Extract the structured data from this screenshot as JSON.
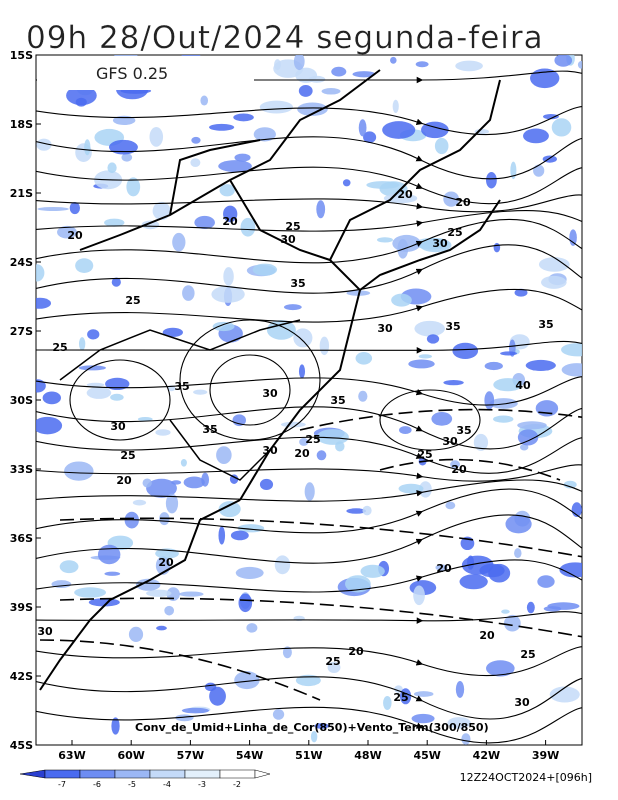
{
  "title": "09h 28/Out/2024 segunda-feira",
  "model": "GFS 0.25",
  "lat_labels": [
    "15S",
    "18S",
    "21S",
    "24S",
    "27S",
    "30S",
    "33S",
    "36S",
    "39S",
    "42S",
    "45S"
  ],
  "lon_labels": [
    "63W",
    "60W",
    "57W",
    "54W",
    "51W",
    "48W",
    "45W",
    "42W",
    "39W"
  ],
  "caption": "Conv_de_Umid+Linha_de_Cor(850)+Vento_Term(300/850)",
  "colorbar": {
    "labels": [
      "-7",
      "-6",
      "-5",
      "-4",
      "-3",
      "-2"
    ]
  },
  "run": "12Z24OCT2024+[096h]",
  "contour_labels": [
    "20",
    "20",
    "20",
    "20",
    "25",
    "30",
    "25",
    "30",
    "35",
    "25",
    "30",
    "35",
    "35",
    "25",
    "35",
    "30",
    "40",
    "35",
    "30",
    "35",
    "35",
    "30",
    "25",
    "30",
    "20",
    "25",
    "25",
    "20",
    "20",
    "20",
    "20",
    "30",
    "20",
    "20",
    "25",
    "25",
    "25",
    "30"
  ]
}
